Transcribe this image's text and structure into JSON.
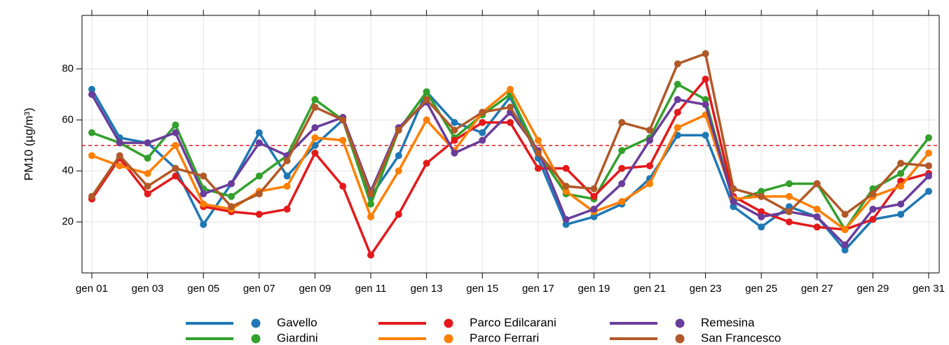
{
  "chart_data": {
    "type": "line",
    "y_label": "PM10 (µg/m³)",
    "categories": [
      "gen 01",
      null,
      "gen 03",
      null,
      "gen 05",
      null,
      "gen 07",
      null,
      "gen 09",
      null,
      "gen 11",
      null,
      "gen 13",
      null,
      "gen 15",
      null,
      "gen 17",
      null,
      "gen 19",
      null,
      "gen 21",
      null,
      "gen 23",
      null,
      "gen 25",
      null,
      "gen 27",
      null,
      "gen 29",
      null,
      "gen 31"
    ],
    "series": [
      {
        "name": "Gavello",
        "color": "#1f78b4",
        "values": [
          72,
          53,
          51,
          41,
          19,
          35,
          55,
          38,
          50,
          60,
          30,
          46,
          71,
          59,
          55,
          69,
          45,
          19,
          22,
          27,
          37,
          54,
          54,
          26,
          18,
          26,
          22,
          9,
          21,
          23,
          32
        ]
      },
      {
        "name": "Giardini",
        "color": "#33a02c",
        "values": [
          55,
          51,
          45,
          58,
          33,
          30,
          38,
          46,
          68,
          60,
          27,
          56,
          71,
          53,
          62,
          70,
          47,
          31,
          29,
          48,
          53,
          74,
          68,
          28,
          32,
          35,
          35,
          17,
          33,
          39,
          53
        ]
      },
      {
        "name": "Parco Edilcarani",
        "color": "#e31a1c",
        "values": [
          29,
          45,
          31,
          38,
          26,
          24,
          23,
          25,
          47,
          34,
          7,
          23,
          43,
          52,
          59,
          59,
          41,
          41,
          30,
          41,
          42,
          63,
          76,
          30,
          24,
          20,
          18,
          17,
          21,
          36,
          39
        ]
      },
      {
        "name": "Parco Ferrari",
        "color": "#ff7f00",
        "values": [
          46,
          42,
          39,
          50,
          27,
          25,
          32,
          34,
          53,
          52,
          22,
          40,
          60,
          48,
          63,
          72,
          52,
          32,
          24,
          28,
          35,
          57,
          62,
          29,
          30,
          30,
          25,
          17,
          30,
          34,
          47
        ]
      },
      {
        "name": "Remesina",
        "color": "#6a3d9a",
        "values": [
          70,
          51,
          51,
          55,
          31,
          35,
          51,
          46,
          57,
          61,
          32,
          57,
          67,
          47,
          52,
          63,
          48,
          21,
          25,
          35,
          52,
          68,
          66,
          28,
          22,
          24,
          22,
          11,
          25,
          27,
          38
        ]
      },
      {
        "name": "San Francesco",
        "color": "#b15928",
        "values": [
          30,
          46,
          34,
          41,
          38,
          26,
          31,
          44,
          65,
          60,
          31,
          56,
          68,
          56,
          63,
          65,
          47,
          34,
          33,
          59,
          56,
          82,
          86,
          33,
          30,
          24,
          35,
          23,
          31,
          43,
          42
        ]
      }
    ],
    "ylim": [
      0,
      101
    ],
    "yticks": [
      20,
      40,
      60,
      80
    ],
    "grid": true,
    "hline": {
      "value": 50,
      "color": "#e31a1c"
    },
    "legend": "bottom"
  }
}
